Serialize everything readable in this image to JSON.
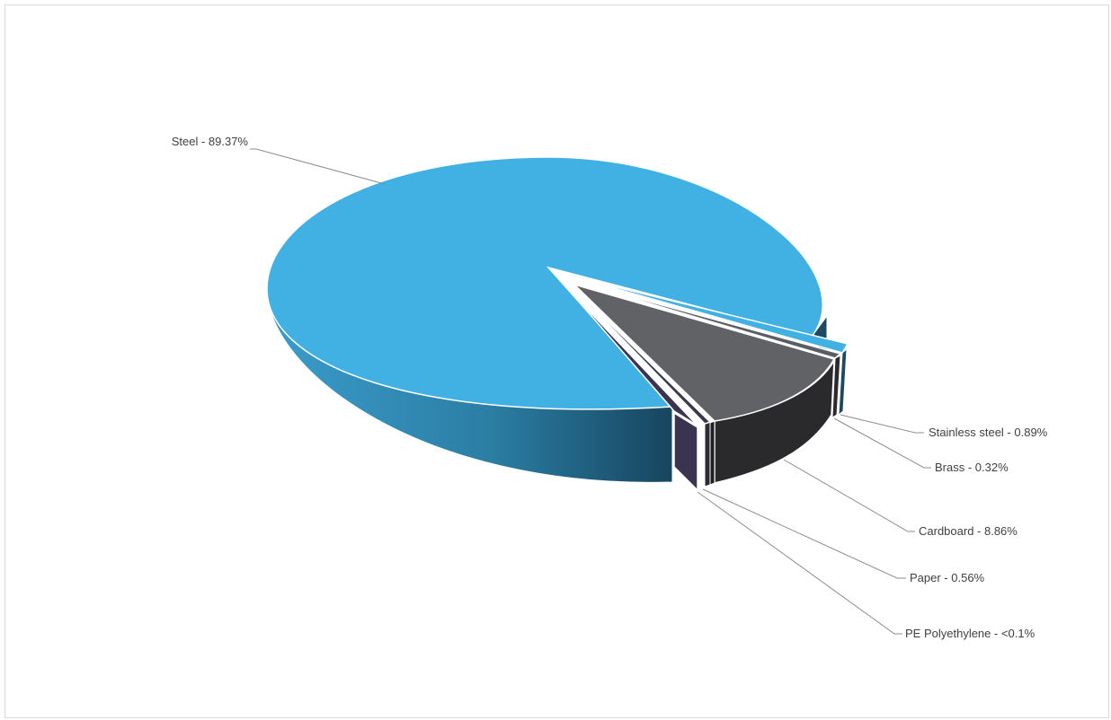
{
  "chart_data": {
    "type": "pie",
    "style": "3d-exploded",
    "slices": [
      {
        "name": "Steel",
        "value": 89.37,
        "label": "Steel - 89.37%",
        "color": "#41b0e2"
      },
      {
        "name": "Stainless steel",
        "value": 0.89,
        "label": "Stainless steel - 0.89%",
        "color": "#41b0e2"
      },
      {
        "name": "Brass",
        "value": 0.32,
        "label": "Brass - 0.32%",
        "color": "#5a5d63"
      },
      {
        "name": "Cardboard",
        "value": 8.86,
        "label": "Cardboard - 8.86%",
        "color": "#616266"
      },
      {
        "name": "Paper",
        "value": 0.56,
        "label": "Paper - 0.56%",
        "color": "#3b3a4a"
      },
      {
        "name": "PE Polyethylene",
        "value": 0.1,
        "label": "PE Polyethylene - <0.1%",
        "color": "#3a3450"
      }
    ],
    "legend": "none",
    "data_labels": "outside-with-leader-lines"
  }
}
